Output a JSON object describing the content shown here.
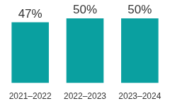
{
  "chart_data": {
    "type": "bar",
    "categories": [
      "2021–2022",
      "2022–2023",
      "2023–2024"
    ],
    "values": [
      47,
      50,
      50
    ],
    "value_labels": [
      "47%",
      "50%",
      "50%"
    ],
    "color": "#0aa0a0",
    "ylim": [
      0,
      50
    ],
    "grid": false,
    "data_labels": true,
    "tick_labels": "x"
  }
}
